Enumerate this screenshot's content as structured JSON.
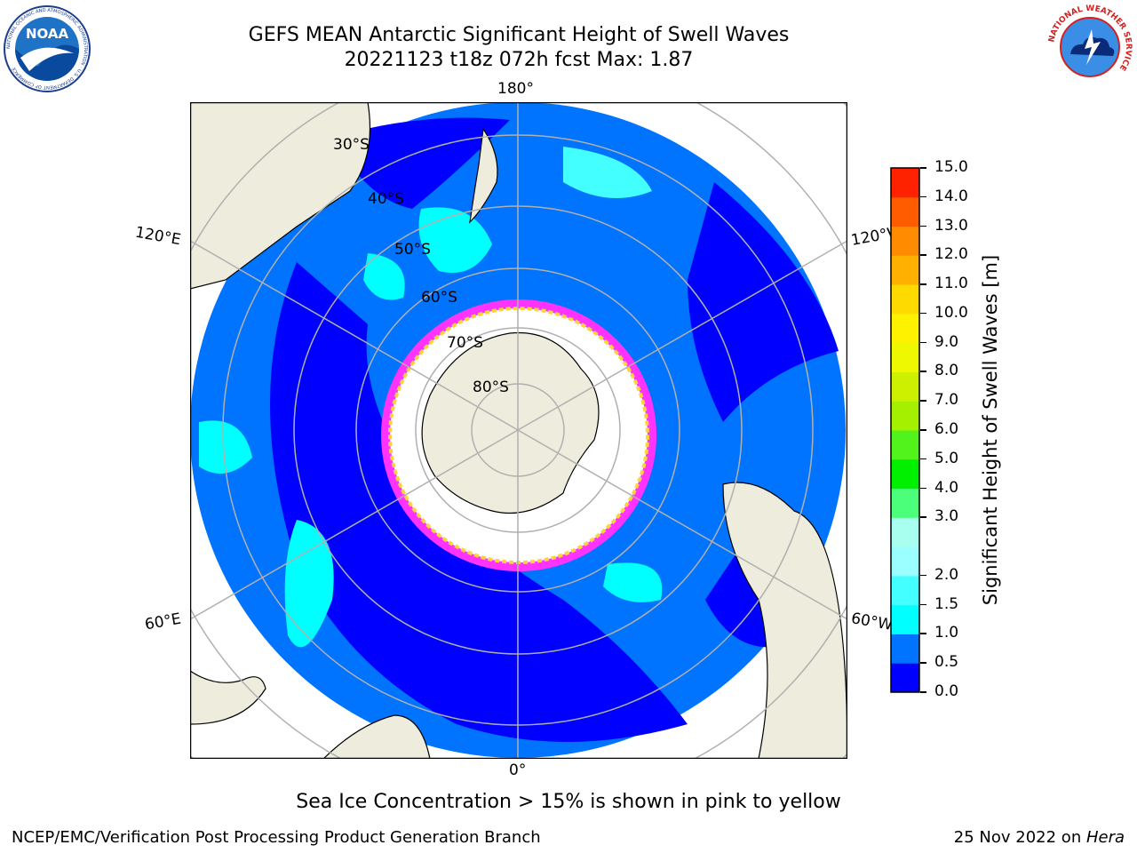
{
  "header": {
    "title_line1": "GEFS MEAN Antarctic Significant Height of Swell Waves",
    "title_line2": "20221123 t18z 072h fcst   Max: 1.87"
  },
  "logos": {
    "left_text": "NOAA",
    "left_ring_text": "NATIONAL OCEANIC AND ATMOSPHERIC ADMINISTRATION · U.S. DEPARTMENT OF COMMERCE",
    "right_ring_text": "NATIONAL WEATHER SERVICE"
  },
  "map": {
    "projection": "south-polar-stereographic",
    "longitude_labels": [
      "180°",
      "120°E",
      "120°W",
      "60°E",
      "60°W",
      "0°"
    ],
    "latitude_labels": [
      "30°S",
      "40°S",
      "50°S",
      "60°S",
      "70°S",
      "80°S"
    ],
    "sea_ice_colors": [
      "#ff33ff",
      "#ff99ff",
      "#ffd33a",
      "#ffffff"
    ],
    "land_color": "#eeecdc"
  },
  "colorbar": {
    "label": "Significant Height of Swell Waves [m]",
    "levels": [
      "0.0",
      "0.5",
      "1.0",
      "1.5",
      "2.0",
      "2.5",
      "3.0",
      "4.0",
      "5.0",
      "6.0",
      "7.0",
      "8.0",
      "9.0",
      "10.0",
      "11.0",
      "12.0",
      "13.0",
      "14.0",
      "15.0"
    ],
    "visible_ticks": [
      "0.0",
      "0.5",
      "1.0",
      "1.5",
      "2.0",
      "3.0",
      "4.0",
      "5.0",
      "6.0",
      "7.0",
      "8.0",
      "9.0",
      "10.0",
      "11.0",
      "12.0",
      "13.0",
      "14.0",
      "15.0"
    ],
    "colors": [
      "#0000ff",
      "#0074ff",
      "#00ffff",
      "#44ffff",
      "#9cffff",
      "#a8fff0",
      "#4cff7a",
      "#00f000",
      "#52f21c",
      "#a4f000",
      "#cdf000",
      "#eef800",
      "#fff200",
      "#ffda00",
      "#ffb000",
      "#ff8c00",
      "#ff5c00",
      "#ff2200"
    ]
  },
  "notes": {
    "sea_ice": "Sea Ice Concentration > 15% is shown in pink to yellow"
  },
  "footer": {
    "left": "NCEP/EMC/Verification Post Processing Product Generation Branch",
    "date": "25 Nov 2022 on ",
    "host": "Hera"
  }
}
